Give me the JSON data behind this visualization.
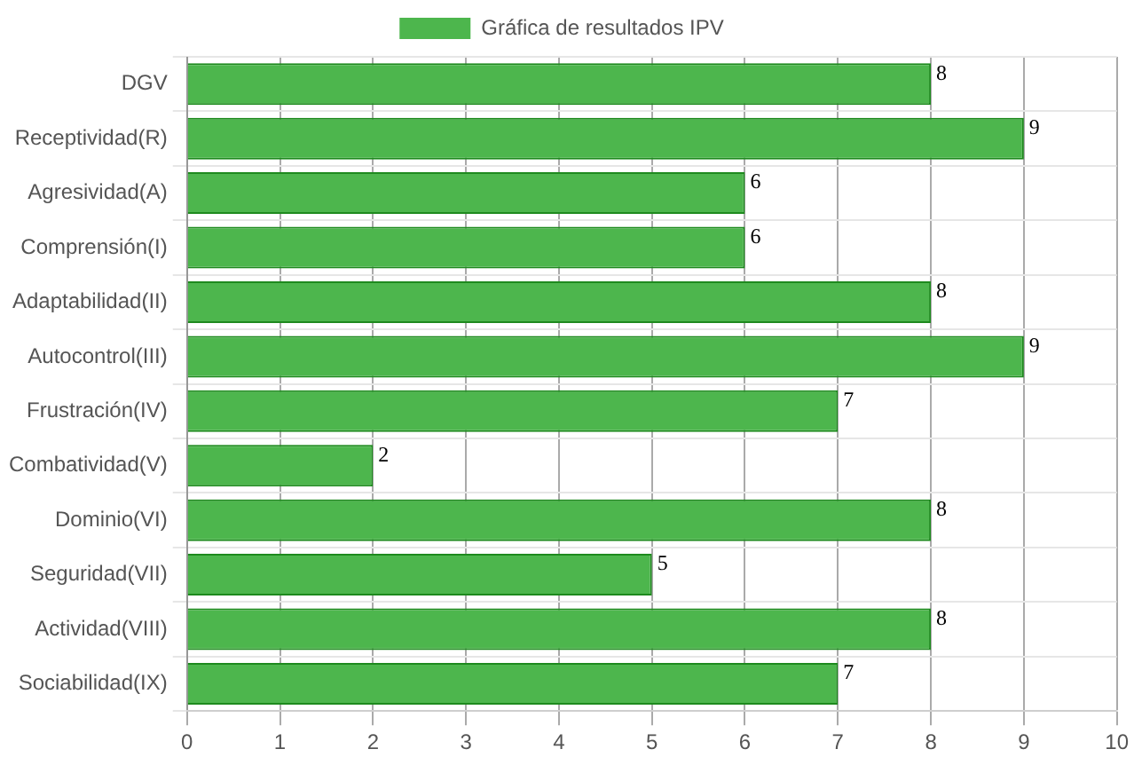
{
  "chart_data": {
    "type": "bar",
    "orientation": "horizontal",
    "categories": [
      "DGV",
      "Receptividad(R)",
      "Agresividad(A)",
      "Comprensión(I)",
      "Adaptabilidad(II)",
      "Autocontrol(III)",
      "Frustración(IV)",
      "Combatividad(V)",
      "Dominio(VI)",
      "Seguridad(VII)",
      "Actividad(VIII)",
      "Sociabilidad(IX)"
    ],
    "series": [
      {
        "name": "Gráfica de resultados IPV",
        "color": "#4db64d",
        "values": [
          8,
          9,
          6,
          6,
          8,
          9,
          7,
          2,
          8,
          5,
          8,
          7
        ]
      }
    ],
    "xlim": [
      0,
      10
    ],
    "xticks": [
      0,
      1,
      2,
      3,
      4,
      5,
      6,
      7,
      8,
      9,
      10
    ],
    "grid": true,
    "legend": "top",
    "data_labels": true
  }
}
